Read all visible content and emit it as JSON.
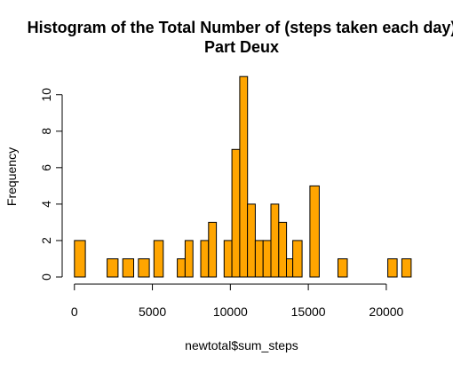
{
  "chart_data": {
    "type": "bar",
    "title_lines": [
      "Histogram of the Total Number of (steps taken each day)",
      "Part Deux"
    ],
    "xlabel": "newtotal$sum_steps",
    "ylabel": "Frequency",
    "bin_width": 700,
    "bins_start": [
      0,
      2100,
      2800,
      3500,
      4200,
      4900,
      6300,
      7000,
      7700,
      8400,
      9800,
      10500,
      10850,
      11200,
      11900,
      12250,
      12600,
      13300,
      13650,
      14000,
      14350,
      15050,
      15750,
      16100,
      16800,
      17150,
      20300,
      21000
    ],
    "bins": [
      {
        "x0": 0,
        "x1": 700,
        "count": 2
      },
      {
        "x0": 700,
        "x1": 2100,
        "count": 0
      },
      {
        "x0": 2100,
        "x1": 2800,
        "count": 1
      },
      {
        "x0": 2800,
        "x1": 3100,
        "count": 0
      },
      {
        "x0": 3100,
        "x1": 3800,
        "count": 1
      },
      {
        "x0": 3800,
        "x1": 4100,
        "count": 0
      },
      {
        "x0": 4100,
        "x1": 4800,
        "count": 1
      },
      {
        "x0": 4800,
        "x1": 5100,
        "count": 0
      },
      {
        "x0": 5100,
        "x1": 5700,
        "count": 2
      },
      {
        "x0": 5700,
        "x1": 6600,
        "count": 0
      },
      {
        "x0": 6600,
        "x1": 7100,
        "count": 1
      },
      {
        "x0": 7100,
        "x1": 7600,
        "count": 2
      },
      {
        "x0": 7600,
        "x1": 8100,
        "count": 0
      },
      {
        "x0": 8100,
        "x1": 8600,
        "count": 2
      },
      {
        "x0": 8600,
        "x1": 9100,
        "count": 3
      },
      {
        "x0": 9100,
        "x1": 9600,
        "count": 0
      },
      {
        "x0": 9600,
        "x1": 10100,
        "count": 2
      },
      {
        "x0": 10100,
        "x1": 10600,
        "count": 7
      },
      {
        "x0": 10600,
        "x1": 11100,
        "count": 11
      },
      {
        "x0": 11100,
        "x1": 11600,
        "count": 4
      },
      {
        "x0": 11600,
        "x1": 12100,
        "count": 2
      },
      {
        "x0": 12100,
        "x1": 12600,
        "count": 2
      },
      {
        "x0": 12600,
        "x1": 13100,
        "count": 4
      },
      {
        "x0": 13100,
        "x1": 13600,
        "count": 3
      },
      {
        "x0": 13600,
        "x1": 14000,
        "count": 1
      },
      {
        "x0": 14000,
        "x1": 14600,
        "count": 2
      },
      {
        "x0": 14600,
        "x1": 15100,
        "count": 0
      },
      {
        "x0": 15100,
        "x1": 15700,
        "count": 5
      },
      {
        "x0": 15700,
        "x1": 16900,
        "count": 0
      },
      {
        "x0": 16900,
        "x1": 17500,
        "count": 1
      },
      {
        "x0": 17500,
        "x1": 20100,
        "count": 0
      },
      {
        "x0": 20100,
        "x1": 20700,
        "count": 1
      },
      {
        "x0": 20700,
        "x1": 21000,
        "count": 0
      },
      {
        "x0": 21000,
        "x1": 21600,
        "count": 1
      }
    ],
    "xlim": [
      -500,
      22000
    ],
    "ylim": [
      0,
      11
    ],
    "x_ticks": [
      0,
      5000,
      10000,
      15000,
      20000
    ],
    "x_tick_labels": [
      "0",
      "5000",
      "10000",
      "15000",
      "20000"
    ],
    "y_ticks": [
      0,
      2,
      4,
      6,
      8,
      10
    ],
    "y_tick_labels": [
      "0",
      "2",
      "4",
      "6",
      "8",
      "10"
    ],
    "bar_color": "#FFA500",
    "bar_edge_color": "#000000",
    "grid": false
  }
}
